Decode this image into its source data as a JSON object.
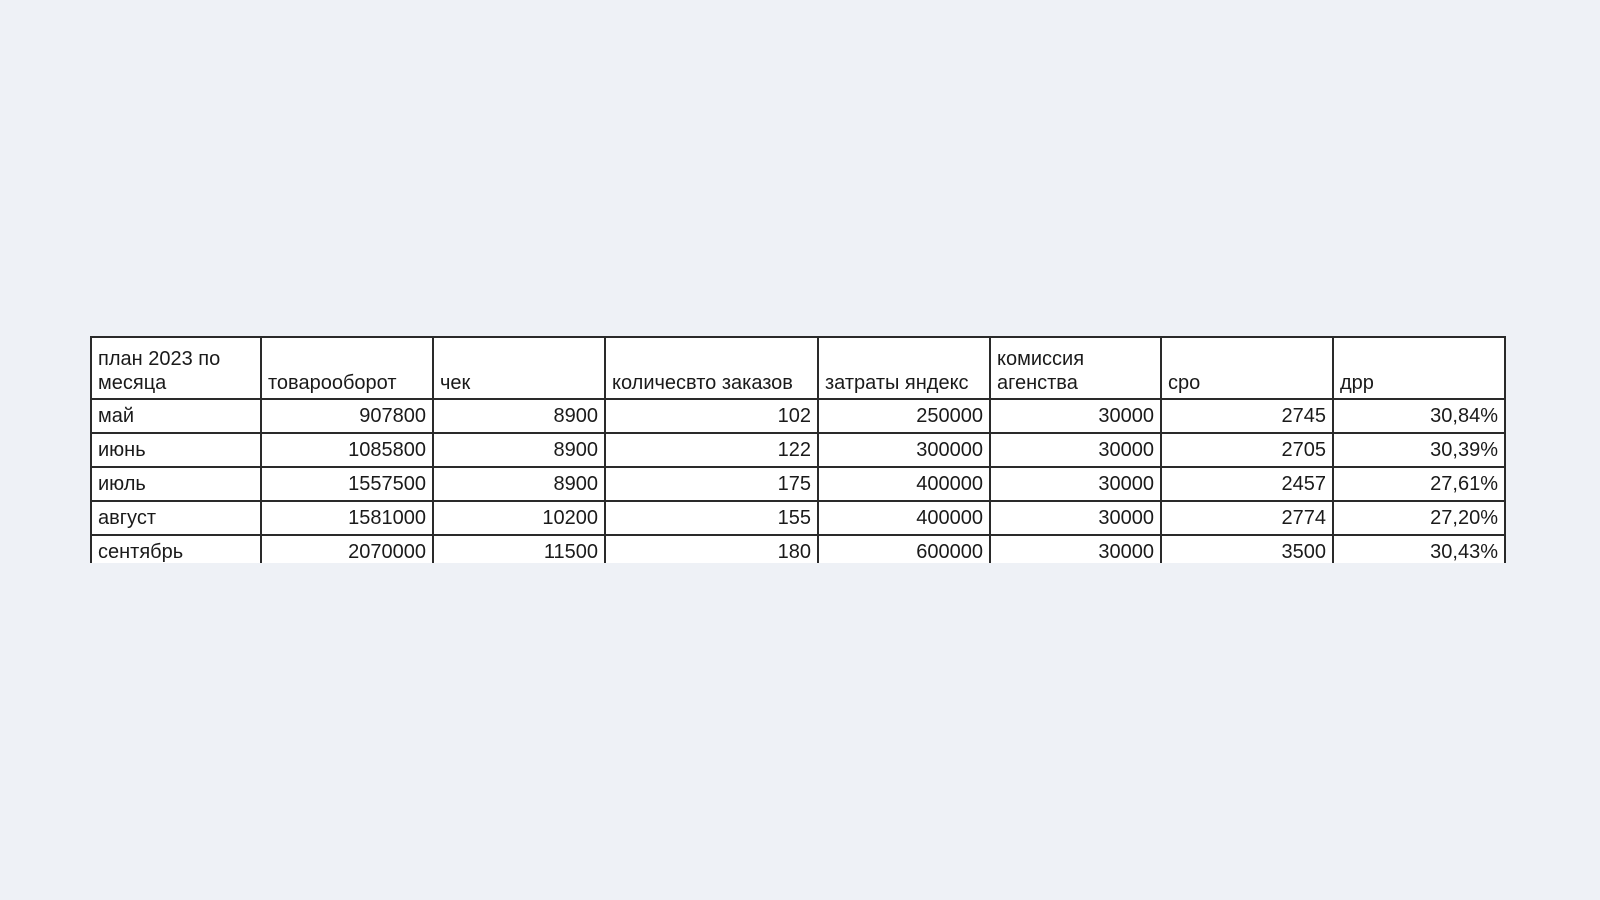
{
  "table": {
    "headers": [
      "план 2023 по месяца",
      "товарооборот",
      "чек",
      "количесвто заказов",
      "затраты яндекс",
      "комиссия агенства",
      "cpo",
      "дрр"
    ],
    "rows": [
      [
        "май",
        "907800",
        "8900",
        "102",
        "250000",
        "30000",
        "2745",
        "30,84%"
      ],
      [
        "июнь",
        "1085800",
        "8900",
        "122",
        "300000",
        "30000",
        "2705",
        "30,39%"
      ],
      [
        "июль",
        "1557500",
        "8900",
        "175",
        "400000",
        "30000",
        "2457",
        "27,61%"
      ],
      [
        "август",
        "1581000",
        "10200",
        "155",
        "400000",
        "30000",
        "2774",
        "27,20%"
      ],
      [
        "сентябрь",
        "2070000",
        "11500",
        "180",
        "600000",
        "30000",
        "3500",
        "30,43%"
      ]
    ]
  }
}
